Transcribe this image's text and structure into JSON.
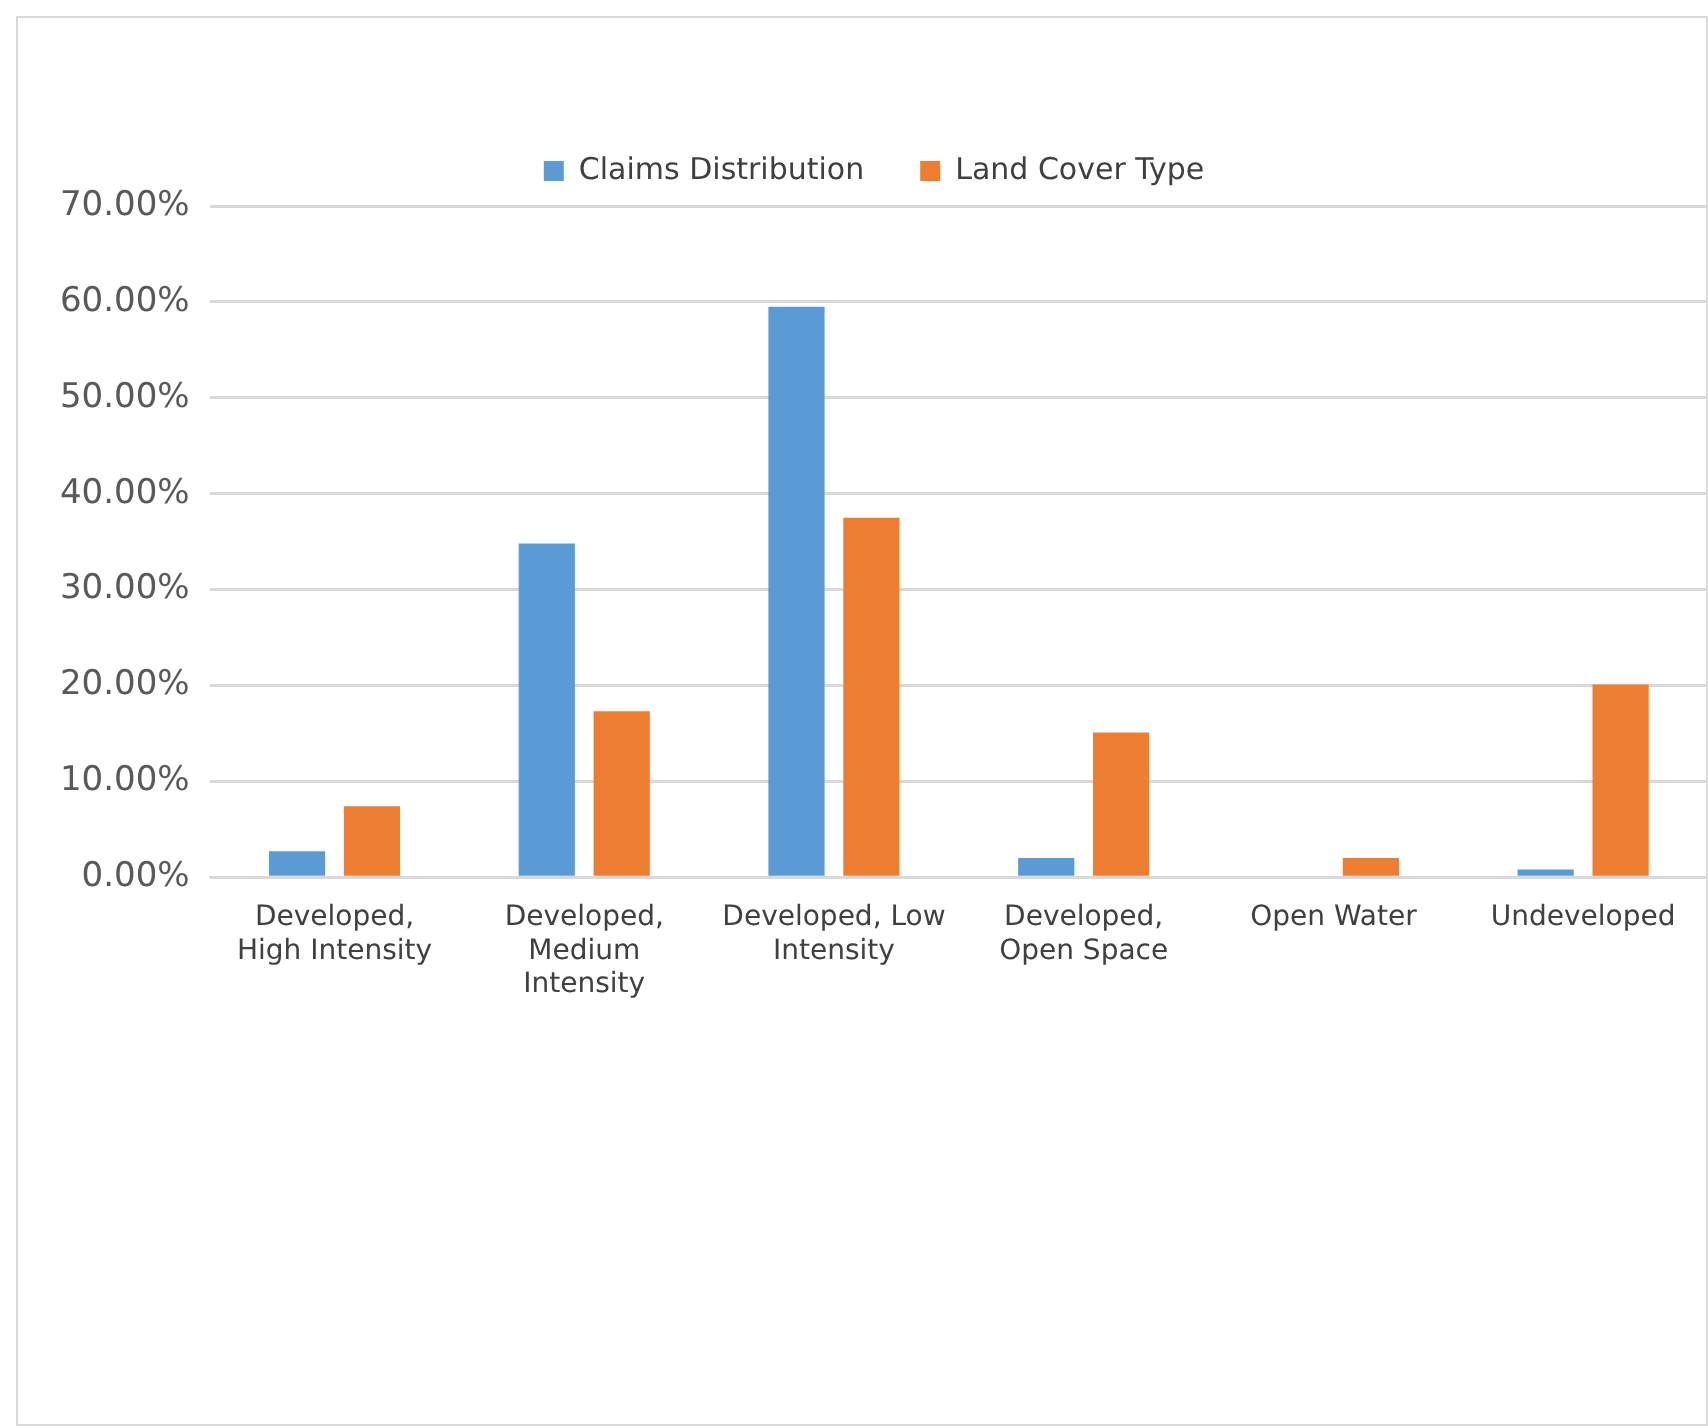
{
  "chart_data": {
    "type": "bar",
    "categories": [
      "Developed, High Intensity",
      "Developed, Medium Intensity",
      "Developed, Low Intensity",
      "Developed, Open Space",
      "Open Water",
      "Undeveloped"
    ],
    "series": [
      {
        "name": "Claims Distribution",
        "color": "#5b9bd5",
        "values": [
          2.7,
          34.8,
          59.5,
          2.0,
          0,
          0.8
        ]
      },
      {
        "name": "Land Cover Type",
        "color": "#ed7d31",
        "values": [
          7.4,
          17.3,
          37.5,
          15.1,
          2.0,
          20.1
        ]
      }
    ],
    "ylim": [
      0,
      70
    ],
    "yticks": [
      {
        "value": 0,
        "label": "0.00%"
      },
      {
        "value": 10,
        "label": "10.00%"
      },
      {
        "value": 20,
        "label": "20.00%"
      },
      {
        "value": 30,
        "label": "30.00%"
      },
      {
        "value": 40,
        "label": "40.00%"
      },
      {
        "value": 50,
        "label": "50.00%"
      },
      {
        "value": 60,
        "label": "60.00%"
      },
      {
        "value": 70,
        "label": "70.00%"
      }
    ],
    "grid": "y",
    "legend": "top"
  }
}
